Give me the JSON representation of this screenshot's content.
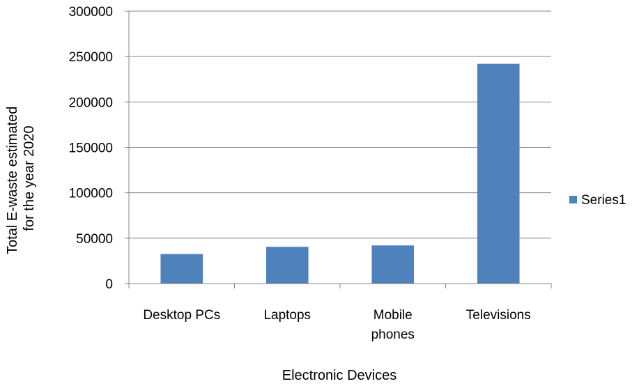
{
  "chart_data": {
    "type": "bar",
    "categories": [
      [
        "Desktop PCs"
      ],
      [
        "Laptops"
      ],
      [
        "Mobile",
        "phones"
      ],
      [
        "Televisions"
      ]
    ],
    "series": [
      {
        "name": "Series1",
        "values": [
          32500,
          40500,
          42000,
          242000
        ]
      }
    ],
    "ylim": [
      0,
      300000
    ],
    "yticks": [
      0,
      50000,
      100000,
      150000,
      200000,
      250000,
      300000
    ],
    "ytick_labels": [
      "0",
      "50000",
      "100000",
      "150000",
      "200000",
      "250000",
      "300000"
    ],
    "xlabel": "Electronic Devices",
    "ylabel": [
      "Total E-waste estimated",
      "for the year 2020"
    ],
    "grid": true,
    "legend": "right",
    "colors": {
      "bar": "#4F81BD",
      "grid": "#868686",
      "axis": "#868686"
    }
  }
}
